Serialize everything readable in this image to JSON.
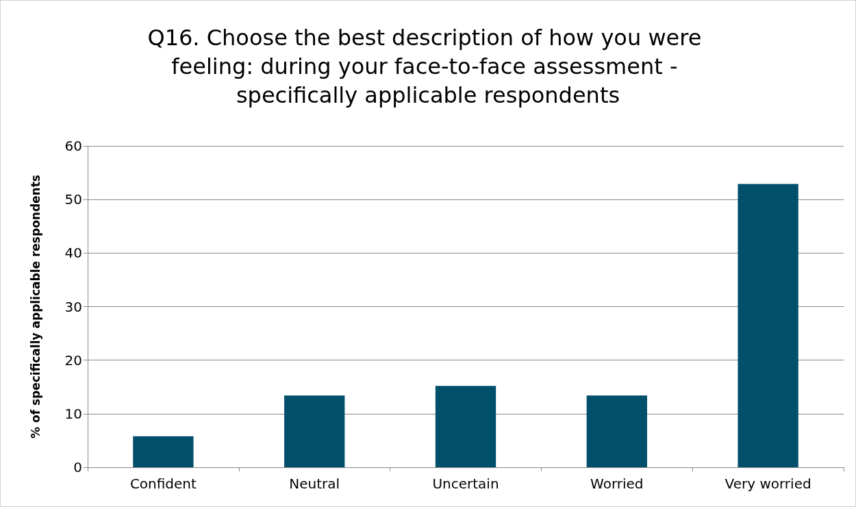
{
  "chart_data": {
    "type": "bar",
    "title": "Q16. Choose the best description of how you were feeling: during your face-to-face assessment - specifically applicable respondents",
    "ylabel": "% of specifically applicable respondents",
    "categories": [
      "Confident",
      "Neutral",
      "Uncertain",
      "Worried",
      "Very worried"
    ],
    "values": [
      5.8,
      13.4,
      15.2,
      13.4,
      52.9
    ],
    "color": "#004f6b",
    "ylim": [
      0,
      60
    ],
    "yticks": [
      0,
      10,
      20,
      30,
      40,
      50,
      60
    ],
    "grid": "y"
  }
}
